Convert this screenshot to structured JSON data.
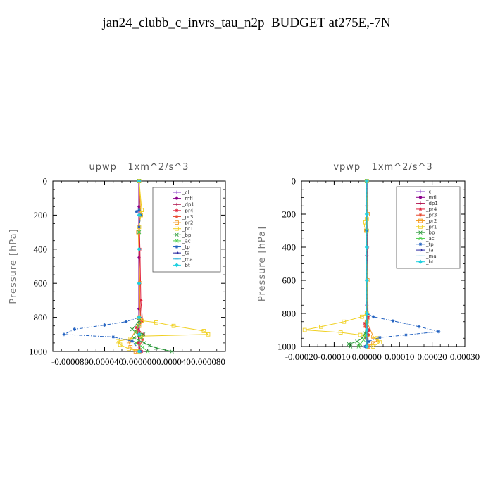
{
  "title": "jan24_clubb_c_invrs_tau_n2p  BUDGET at275E,-7N",
  "chart_data": [
    {
      "type": "line",
      "title": "upwp   1xm^2/s^3",
      "ylabel": "Pressure  [hPa]",
      "xlim": [
        -0.0001,
        0.0001
      ],
      "ylim": [
        1000,
        0
      ],
      "xticks": [
        -8e-05,
        -4e-05,
        0.0,
        4e-05,
        8e-05
      ],
      "xtick_labels": [
        "-0.000080",
        "-0.000040",
        "0.000000",
        "0.000040",
        "0.000080"
      ],
      "yticks": [
        0,
        200,
        400,
        600,
        800,
        1000
      ],
      "ytick_labels": [
        "0",
        "200",
        "400",
        "600",
        "800",
        "1000"
      ],
      "legend_position": "top-right",
      "series": [
        {
          "name": "_cl",
          "color": "#8a3fc8",
          "marker": "plus",
          "x": [
            0,
            0,
            0,
            0,
            0,
            0,
            0,
            0
          ],
          "y": [
            0,
            150,
            300,
            450,
            600,
            750,
            900,
            1000
          ]
        },
        {
          "name": "_mfl",
          "color": "#8b008b",
          "marker": "dot",
          "x": [
            0,
            0,
            0,
            0,
            0,
            0,
            0,
            0
          ],
          "y": [
            0,
            150,
            300,
            450,
            600,
            750,
            900,
            1000
          ]
        },
        {
          "name": "_dp1",
          "color": "#b0124d",
          "marker": "plus",
          "x": [
            0,
            0,
            0,
            0,
            2e-06,
            -2e-06,
            0,
            2e-06
          ],
          "y": [
            0,
            200,
            400,
            600,
            800,
            880,
            950,
            1000
          ]
        },
        {
          "name": "_pr4",
          "color": "#e0203a",
          "marker": "star",
          "x": [
            0,
            0,
            1e-06,
            2e-06,
            4e-06,
            -3e-06,
            5e-06,
            -2e-06,
            3e-06
          ],
          "y": [
            0,
            200,
            400,
            700,
            820,
            860,
            900,
            950,
            1000
          ]
        },
        {
          "name": "_pr3",
          "color": "#e84a30",
          "marker": "star",
          "x": [
            0,
            0,
            0,
            2e-06,
            -3e-06,
            4e-06,
            -2e-06
          ],
          "y": [
            0,
            300,
            600,
            830,
            880,
            930,
            1000
          ]
        },
        {
          "name": "_pr2",
          "color": "#f49a20",
          "marker": "square",
          "x": [
            0,
            2e-06,
            -1e-06,
            1e-06,
            0,
            -1.2e-05,
            -1e-05,
            -4e-06
          ],
          "y": [
            0,
            200,
            300,
            600,
            850,
            940,
            975,
            1000
          ]
        },
        {
          "name": "_pr1",
          "color": "#f0d020",
          "marker": "square",
          "x": [
            0,
            3e-06,
            2e-06,
            0,
            0,
            3e-06,
            2e-05,
            4e-05,
            7.5e-05,
            8e-05,
            2e-06,
            -1e-05,
            -2.5e-05,
            -2.2e-05,
            -1.2e-05,
            0
          ],
          "y": [
            0,
            170,
            200,
            270,
            800,
            820,
            830,
            850,
            880,
            900,
            910,
            925,
            940,
            960,
            985,
            1000
          ]
        },
        {
          "name": "_bp",
          "color": "#2a9a3a",
          "marker": "cross",
          "x": [
            0,
            0,
            0,
            -8e-06,
            5e-06,
            -6e-06,
            6e-06,
            1.2e-05,
            2e-05,
            3.8e-05
          ],
          "y": [
            0,
            300,
            820,
            870,
            900,
            920,
            950,
            965,
            980,
            1000
          ]
        },
        {
          "name": "_ac",
          "color": "#50d050",
          "marker": "cross",
          "x": [
            0,
            0,
            0,
            -4e-06,
            3e-06,
            -4e-06,
            4e-06,
            1e-05
          ],
          "y": [
            0,
            300,
            840,
            890,
            920,
            950,
            975,
            1000
          ]
        },
        {
          "name": "_tp",
          "color": "#2060c0",
          "marker": "star",
          "x": [
            0,
            0,
            -3e-06,
            2e-06,
            0,
            0,
            -1.5e-05,
            -4e-05,
            -7.5e-05,
            -8.7e-05,
            -3e-05,
            -8e-06,
            2e-06
          ],
          "y": [
            0,
            170,
            180,
            200,
            270,
            800,
            825,
            845,
            870,
            900,
            915,
            940,
            1000
          ]
        },
        {
          "name": "_ta",
          "color": "#2828a0",
          "marker": "arrow",
          "x": [
            0,
            0,
            0,
            0,
            0,
            0,
            0
          ],
          "y": [
            0,
            200,
            400,
            600,
            800,
            900,
            1000
          ]
        },
        {
          "name": "_ma",
          "color": "#2ab0d8",
          "marker": "dash",
          "x": [
            0,
            0,
            0,
            0,
            0,
            0,
            0
          ],
          "y": [
            0,
            200,
            400,
            600,
            800,
            900,
            1000
          ]
        },
        {
          "name": "_bt",
          "color": "#20d0e0",
          "marker": "diamond",
          "x": [
            0,
            0,
            0,
            0,
            0,
            0,
            0
          ],
          "y": [
            0,
            200,
            400,
            600,
            800,
            900,
            1000
          ]
        }
      ]
    },
    {
      "type": "line",
      "title": "vpwp   1xm^2/s^3",
      "ylabel": "Pressure  [hPa]",
      "xlim": [
        -0.0002,
        0.0003
      ],
      "ylim": [
        1000,
        0
      ],
      "xticks": [
        -0.0002,
        -0.0001,
        0.0,
        0.0001,
        0.0002,
        0.0003
      ],
      "xtick_labels": [
        "-0.00020",
        "-0.00010",
        "0.00000",
        "0.00010",
        "0.00020",
        "0.00030"
      ],
      "yticks": [
        0,
        200,
        400,
        600,
        800,
        1000
      ],
      "ytick_labels": [
        "0",
        "200",
        "400",
        "600",
        "800",
        "1000"
      ],
      "legend_position": "top-right",
      "series": [
        {
          "name": "_cl",
          "color": "#8a3fc8",
          "marker": "plus",
          "x": [
            0,
            0,
            0,
            0,
            0,
            0,
            0,
            0
          ],
          "y": [
            0,
            150,
            300,
            450,
            600,
            750,
            900,
            1000
          ]
        },
        {
          "name": "_mfl",
          "color": "#8b008b",
          "marker": "dot",
          "x": [
            0,
            0,
            0,
            0,
            0,
            0,
            0,
            0
          ],
          "y": [
            0,
            150,
            300,
            450,
            600,
            750,
            900,
            1000
          ]
        },
        {
          "name": "_dp1",
          "color": "#b0124d",
          "marker": "plus",
          "x": [
            0,
            0,
            0,
            0,
            3e-06,
            -3e-06,
            0,
            2e-06
          ],
          "y": [
            0,
            200,
            400,
            600,
            800,
            880,
            950,
            1000
          ]
        },
        {
          "name": "_pr4",
          "color": "#e0203a",
          "marker": "star",
          "x": [
            0,
            0,
            2e-06,
            4e-06,
            -6e-06,
            8e-06,
            -4e-06,
            4e-06
          ],
          "y": [
            0,
            200,
            400,
            820,
            860,
            900,
            950,
            1000
          ]
        },
        {
          "name": "_pr3",
          "color": "#e84a30",
          "marker": "star",
          "x": [
            0,
            0,
            0,
            4e-06,
            -5e-06,
            6e-06,
            -3e-06
          ],
          "y": [
            0,
            300,
            600,
            830,
            880,
            930,
            1000
          ]
        },
        {
          "name": "_pr2",
          "color": "#f49a20",
          "marker": "square",
          "x": [
            0,
            3e-06,
            -2e-06,
            2e-06,
            0,
            2e-05,
            3.5e-05,
            2e-05,
            5e-06
          ],
          "y": [
            0,
            200,
            300,
            600,
            850,
            940,
            960,
            980,
            1000
          ]
        },
        {
          "name": "_pr1",
          "color": "#f0d020",
          "marker": "square",
          "x": [
            0,
            0,
            -4e-06,
            -2e-06,
            0,
            0,
            -1.5e-05,
            -7e-05,
            -0.00014,
            -0.00019,
            -8e-05,
            -2e-05,
            3e-05,
            4e-05,
            2e-05
          ],
          "y": [
            0,
            230,
            250,
            270,
            300,
            800,
            820,
            850,
            880,
            900,
            915,
            930,
            950,
            975,
            1000
          ]
        },
        {
          "name": "_bp",
          "color": "#2a9a3a",
          "marker": "cross",
          "x": [
            0,
            0,
            0,
            -5e-06,
            -1.5e-05,
            -3e-05,
            -5.5e-05,
            -5e-05
          ],
          "y": [
            0,
            300,
            850,
            920,
            950,
            970,
            985,
            1000
          ]
        },
        {
          "name": "_ac",
          "color": "#50d050",
          "marker": "cross",
          "x": [
            0,
            0,
            0,
            -3e-06,
            -1e-05,
            -2e-05,
            -2.5e-05
          ],
          "y": [
            0,
            300,
            860,
            930,
            960,
            985,
            1000
          ]
        },
        {
          "name": "_tp",
          "color": "#2060c0",
          "marker": "star",
          "x": [
            0,
            0,
            0,
            2e-05,
            8e-05,
            0.00016,
            0.00022,
            0.00012,
            4e-05,
            5e-06,
            -5e-06
          ],
          "y": [
            0,
            300,
            800,
            820,
            845,
            880,
            910,
            930,
            945,
            970,
            1000
          ]
        },
        {
          "name": "_ta",
          "color": "#2828a0",
          "marker": "arrow",
          "x": [
            0,
            0,
            0,
            0,
            0,
            0,
            0
          ],
          "y": [
            0,
            200,
            400,
            600,
            800,
            900,
            1000
          ]
        },
        {
          "name": "_ma",
          "color": "#2ab0d8",
          "marker": "dash",
          "x": [
            0,
            0,
            0,
            0,
            0,
            0,
            0
          ],
          "y": [
            0,
            200,
            400,
            600,
            800,
            900,
            1000
          ]
        },
        {
          "name": "_bt",
          "color": "#20d0e0",
          "marker": "diamond",
          "x": [
            0,
            0,
            0,
            0,
            0,
            0,
            0
          ],
          "y": [
            0,
            200,
            400,
            600,
            800,
            900,
            1000
          ]
        }
      ]
    }
  ]
}
